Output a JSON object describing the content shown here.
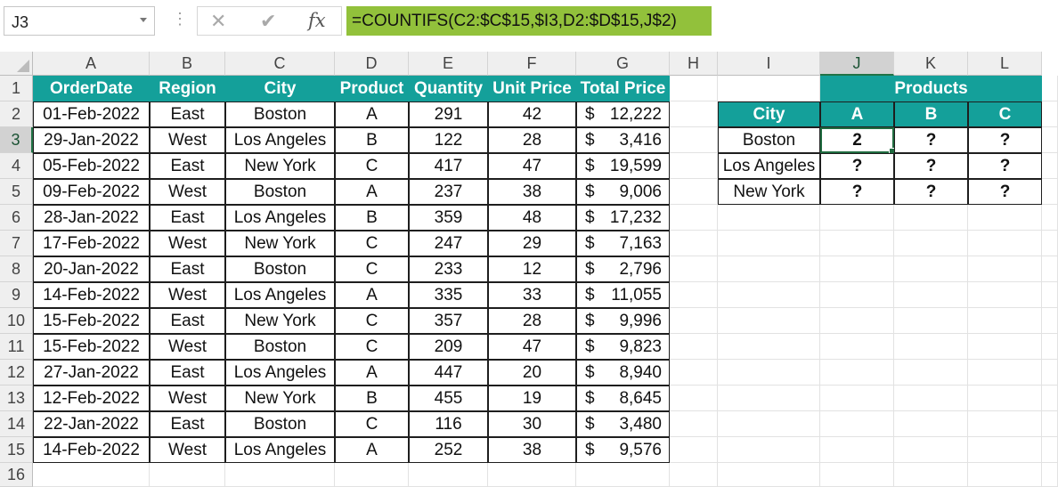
{
  "name_box": "J3",
  "formula": "=COUNTIFS(C2:$C$15,$I3,D2:$D$15,J$2)",
  "formula_bar": {
    "cancel_icon": "close-icon",
    "enter_icon": "check-icon",
    "fx_label": "fx"
  },
  "columns": [
    "A",
    "B",
    "C",
    "D",
    "E",
    "F",
    "G",
    "H",
    "I",
    "J",
    "K",
    "L"
  ],
  "rows": [
    "1",
    "2",
    "3",
    "4",
    "5",
    "6",
    "7",
    "8",
    "9",
    "10",
    "11",
    "12",
    "13",
    "14",
    "15",
    "16"
  ],
  "table": {
    "headers": [
      "OrderDate",
      "Region",
      "City",
      "Product",
      "Quantity",
      "Unit Price",
      "Total Price"
    ],
    "currency": "$",
    "rows": [
      [
        "01-Feb-2022",
        "East",
        "Boston",
        "A",
        "291",
        "42",
        "12,222"
      ],
      [
        "29-Jan-2022",
        "West",
        "Los Angeles",
        "B",
        "122",
        "28",
        "3,416"
      ],
      [
        "05-Feb-2022",
        "East",
        "New York",
        "C",
        "417",
        "47",
        "19,599"
      ],
      [
        "09-Feb-2022",
        "West",
        "Boston",
        "A",
        "237",
        "38",
        "9,006"
      ],
      [
        "28-Jan-2022",
        "East",
        "Los Angeles",
        "B",
        "359",
        "48",
        "17,232"
      ],
      [
        "17-Feb-2022",
        "West",
        "New York",
        "C",
        "247",
        "29",
        "7,163"
      ],
      [
        "20-Jan-2022",
        "East",
        "Boston",
        "C",
        "233",
        "12",
        "2,796"
      ],
      [
        "14-Feb-2022",
        "West",
        "Los Angeles",
        "A",
        "335",
        "33",
        "11,055"
      ],
      [
        "15-Feb-2022",
        "East",
        "New York",
        "C",
        "357",
        "28",
        "9,996"
      ],
      [
        "15-Feb-2022",
        "West",
        "Boston",
        "C",
        "209",
        "47",
        "9,823"
      ],
      [
        "27-Jan-2022",
        "East",
        "Los Angeles",
        "A",
        "447",
        "20",
        "8,940"
      ],
      [
        "12-Feb-2022",
        "West",
        "New York",
        "B",
        "455",
        "19",
        "8,645"
      ],
      [
        "22-Jan-2022",
        "East",
        "Boston",
        "C",
        "116",
        "30",
        "3,480"
      ],
      [
        "14-Feb-2022",
        "West",
        "Los Angeles",
        "A",
        "252",
        "38",
        "9,576"
      ]
    ]
  },
  "summary": {
    "title": "Products",
    "city_header": "City",
    "products": [
      "A",
      "B",
      "C"
    ],
    "cities": [
      "Boston",
      "Los Angeles",
      "New York"
    ],
    "values": [
      [
        "2",
        "?",
        "?"
      ],
      [
        "?",
        "?",
        "?"
      ],
      [
        "?",
        "?",
        "?"
      ]
    ]
  },
  "colors": {
    "header_teal": "#14a09a",
    "formula_highlight": "#92c13b",
    "selection_green": "#217346"
  }
}
